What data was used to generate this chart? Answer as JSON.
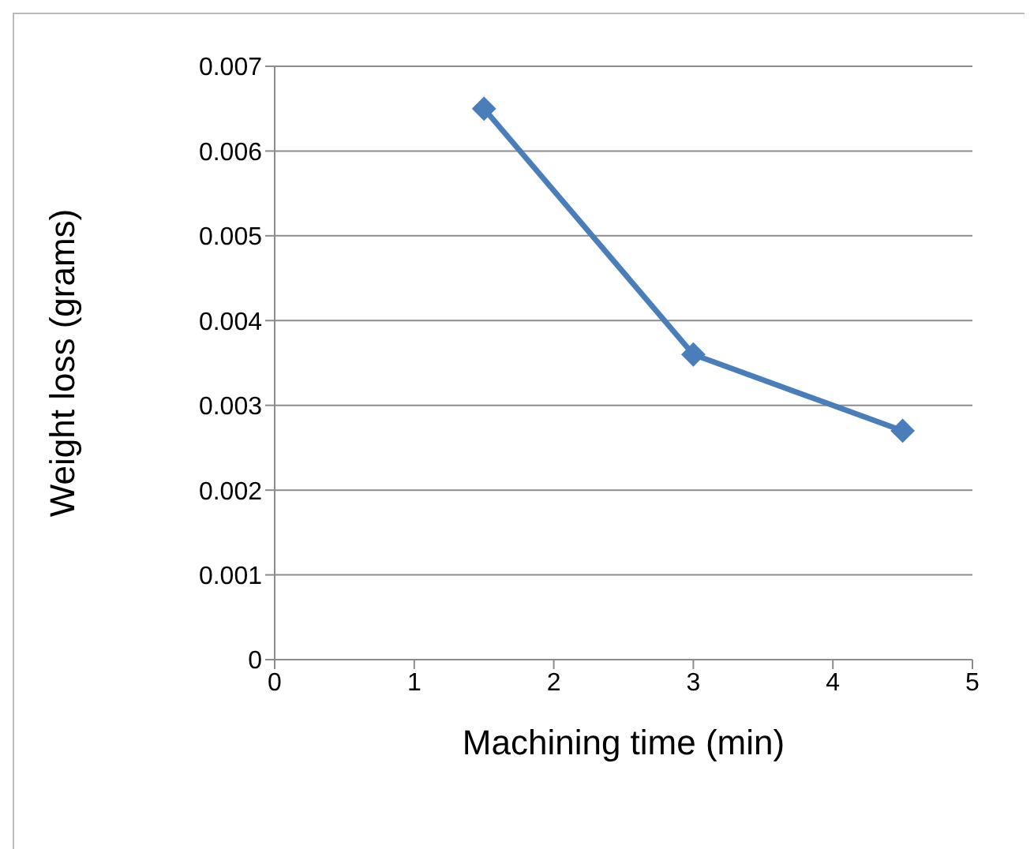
{
  "chart_data": {
    "type": "line",
    "xlabel": "Machining time (min)",
    "ylabel": "Weight loss (grams)",
    "x": [
      1.5,
      3,
      4.5
    ],
    "series": [
      {
        "color": "#4a7ebb",
        "values": [
          0.0065,
          0.0036,
          0.0027
        ]
      }
    ],
    "xlim": [
      0,
      5
    ],
    "xticks": [
      0,
      1,
      2,
      3,
      4,
      5
    ],
    "ylim": [
      0,
      0.007
    ],
    "yticks": [
      0,
      0.001,
      0.002,
      0.003,
      0.004,
      0.005,
      0.006,
      0.007
    ],
    "grid": "y",
    "marker": "diamond",
    "line_style": "solid",
    "legend": false
  }
}
